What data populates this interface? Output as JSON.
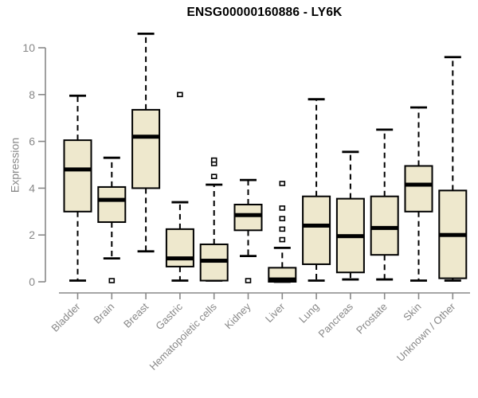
{
  "title": "ENSG00000160886 - LY6K",
  "chart_data": {
    "type": "boxplot",
    "title": "ENSG00000160886 - LY6K",
    "xlabel": "",
    "ylabel": "Expression",
    "ylim": [
      0,
      10
    ],
    "yticks": [
      0,
      2,
      4,
      6,
      8,
      10
    ],
    "grid": false,
    "legend": "none",
    "categories": [
      "Bladder",
      "Brain",
      "Breast",
      "Gastric",
      "Hematopoietic cells",
      "Kidney",
      "Liver",
      "Lung",
      "Pancreas",
      "Prostate",
      "Skin",
      "Unknown / Other"
    ],
    "series": [
      {
        "label": "Bladder",
        "whislo": 0.05,
        "q1": 3.0,
        "med": 4.8,
        "q3": 6.05,
        "whishi": 7.95,
        "outliers": []
      },
      {
        "label": "Brain",
        "whislo": 1.0,
        "q1": 2.55,
        "med": 3.5,
        "q3": 4.05,
        "whishi": 5.3,
        "outliers": [
          0.05
        ]
      },
      {
        "label": "Breast",
        "whislo": 1.3,
        "q1": 4.0,
        "med": 6.2,
        "q3": 7.35,
        "whishi": 10.6,
        "outliers": []
      },
      {
        "label": "Gastric",
        "whislo": 0.05,
        "q1": 0.65,
        "med": 1.0,
        "q3": 2.25,
        "whishi": 3.4,
        "outliers": [
          8.0
        ]
      },
      {
        "label": "Hematopoietic cells",
        "whislo": 0.05,
        "q1": 0.05,
        "med": 0.9,
        "q3": 1.6,
        "whishi": 4.15,
        "outliers": [
          4.5,
          5.05,
          5.2
        ]
      },
      {
        "label": "Kidney",
        "whislo": 1.1,
        "q1": 2.2,
        "med": 2.85,
        "q3": 3.3,
        "whishi": 4.35,
        "outliers": [
          0.05
        ]
      },
      {
        "label": "Liver",
        "whislo": 0.0,
        "q1": 0.0,
        "med": 0.1,
        "q3": 0.6,
        "whishi": 1.45,
        "outliers": [
          1.8,
          2.25,
          2.7,
          3.15,
          4.2
        ]
      },
      {
        "label": "Lung",
        "whislo": 0.05,
        "q1": 0.75,
        "med": 2.4,
        "q3": 3.65,
        "whishi": 7.8,
        "outliers": []
      },
      {
        "label": "Pancreas",
        "whislo": 0.1,
        "q1": 0.4,
        "med": 1.95,
        "q3": 3.55,
        "whishi": 5.55,
        "outliers": []
      },
      {
        "label": "Prostate",
        "whislo": 0.1,
        "q1": 1.15,
        "med": 2.3,
        "q3": 3.65,
        "whishi": 6.5,
        "outliers": []
      },
      {
        "label": "Skin",
        "whislo": 0.05,
        "q1": 3.0,
        "med": 4.15,
        "q3": 4.95,
        "whishi": 7.45,
        "outliers": []
      },
      {
        "label": "Unknown / Other",
        "whislo": 0.05,
        "q1": 0.15,
        "med": 2.0,
        "q3": 3.9,
        "whishi": 9.6,
        "outliers": []
      }
    ],
    "colors": {
      "box_fill": "#EEE8CD",
      "box_border": "#000000",
      "median": "#000000",
      "whisker": "#000000",
      "axis": "#888888",
      "tick_label": "#888888",
      "title": "#000000",
      "background": "#FFFFFF"
    }
  }
}
